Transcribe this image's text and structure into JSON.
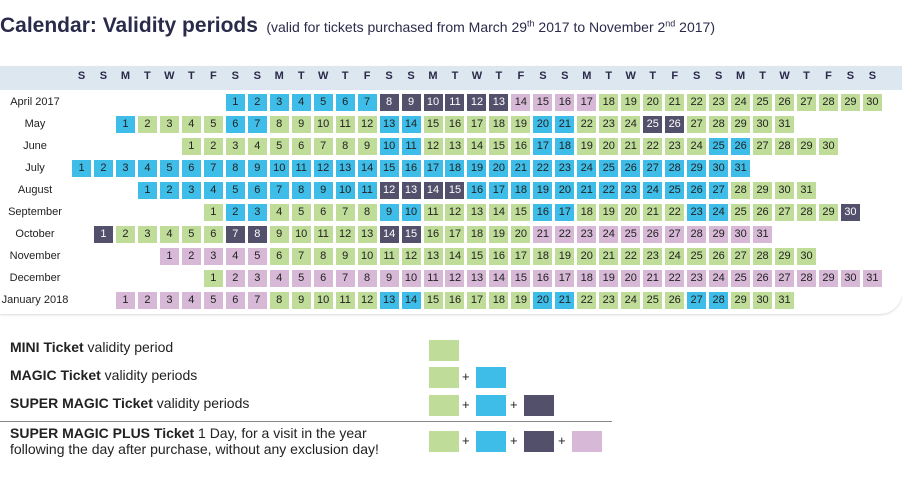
{
  "title": {
    "main": "Calendar: Validity periods",
    "sub_prefix": "(valid for tickets purchased from March 29",
    "sub_sup1": "th",
    "sub_mid": " 2017 to November 2",
    "sub_sup2": "nd",
    "sub_suffix": " 2017)"
  },
  "colors": {
    "green": "#bfdc98",
    "blue": "#3ebde8",
    "dark": "#52506b",
    "pink": "#d7b8d6"
  },
  "weekday_pattern": [
    "S",
    "S",
    "M",
    "T",
    "W",
    "T",
    "F"
  ],
  "months": [
    {
      "label": "April 2017",
      "offset": 7,
      "days": 30,
      "colors": "BBBBBBBDDDDDDPPPPGGGGGGGGGGGGG"
    },
    {
      "label": "May",
      "offset": 2,
      "days": 31,
      "colors": "BGGGGBBGGGGGBBGGGGGBBGGGDDGGGGG"
    },
    {
      "label": "June",
      "offset": 5,
      "days": 30,
      "colors": "GGGGGGGGGBBGGGGGBBGGGGGGBBGGGG"
    },
    {
      "label": "July",
      "offset": 0,
      "days": 31,
      "colors": "BBBBBBBBBBBBBBBBBBBBBBBBBBBBBBB"
    },
    {
      "label": "August",
      "offset": 3,
      "days": 31,
      "colors": "BBBBBBBBBBBDDDDBBBBBBBBBBBBGGGG"
    },
    {
      "label": "September",
      "offset": 6,
      "days": 30,
      "colors": "GBBGGGGGBBGGGGGBBGGGGGBBGGGGGD"
    },
    {
      "label": "October",
      "offset": 1,
      "days": 31,
      "colors": "DGGGGGDDGGGGGDDGGGGGPPPPPPPPPPP"
    },
    {
      "label": "November",
      "offset": 4,
      "days": 30,
      "colors": "PPPPPGGGGGGGGGGGGGGGGGGGGGGGGG"
    },
    {
      "label": "December",
      "offset": 6,
      "days": 31,
      "colors": "GPPPPPPPPPPPPPPPPPPPPPPPPPPPPPP"
    },
    {
      "label": "January 2018",
      "offset": 2,
      "days": 31,
      "colors": "PPPPPPPGGGGGBBGGGGGBBGGGGGBBGGG"
    }
  ],
  "legend": [
    {
      "bold": "MINI Ticket",
      "rest": " validity period",
      "line2": "",
      "swatches": [
        "green"
      ]
    },
    {
      "bold": "MAGIC Ticket",
      "rest": " validity periods",
      "line2": "",
      "swatches": [
        "green",
        "blue"
      ]
    },
    {
      "bold": "SUPER MAGIC Ticket",
      "rest": " validity periods",
      "line2": "",
      "swatches": [
        "green",
        "blue",
        "dark"
      ]
    },
    {
      "bold": "SUPER MAGIC PLUS Ticket",
      "rest": " 1 Day, for a visit in the year",
      "line2": "following the day after purchase, without any exclusion day!",
      "swatches": [
        "green",
        "blue",
        "dark",
        "pink"
      ]
    }
  ],
  "plus_symbol": "+"
}
